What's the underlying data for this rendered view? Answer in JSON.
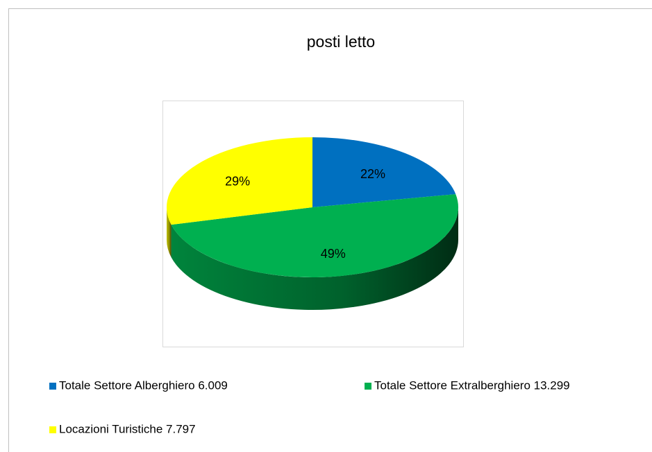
{
  "chart_data": {
    "type": "pie",
    "title": "posti letto",
    "categories": [
      "Totale Settore Alberghiero 6.009",
      "Totale Settore Extralberghiero 13.299",
      "Locazioni Turistiche 7.797"
    ],
    "values": [
      22,
      49,
      29
    ],
    "value_labels": [
      "22%",
      "49%",
      "29%"
    ],
    "colors": [
      "#0070c0",
      "#00b050",
      "#ffff00"
    ],
    "legend": "bottom",
    "three_d": true
  }
}
